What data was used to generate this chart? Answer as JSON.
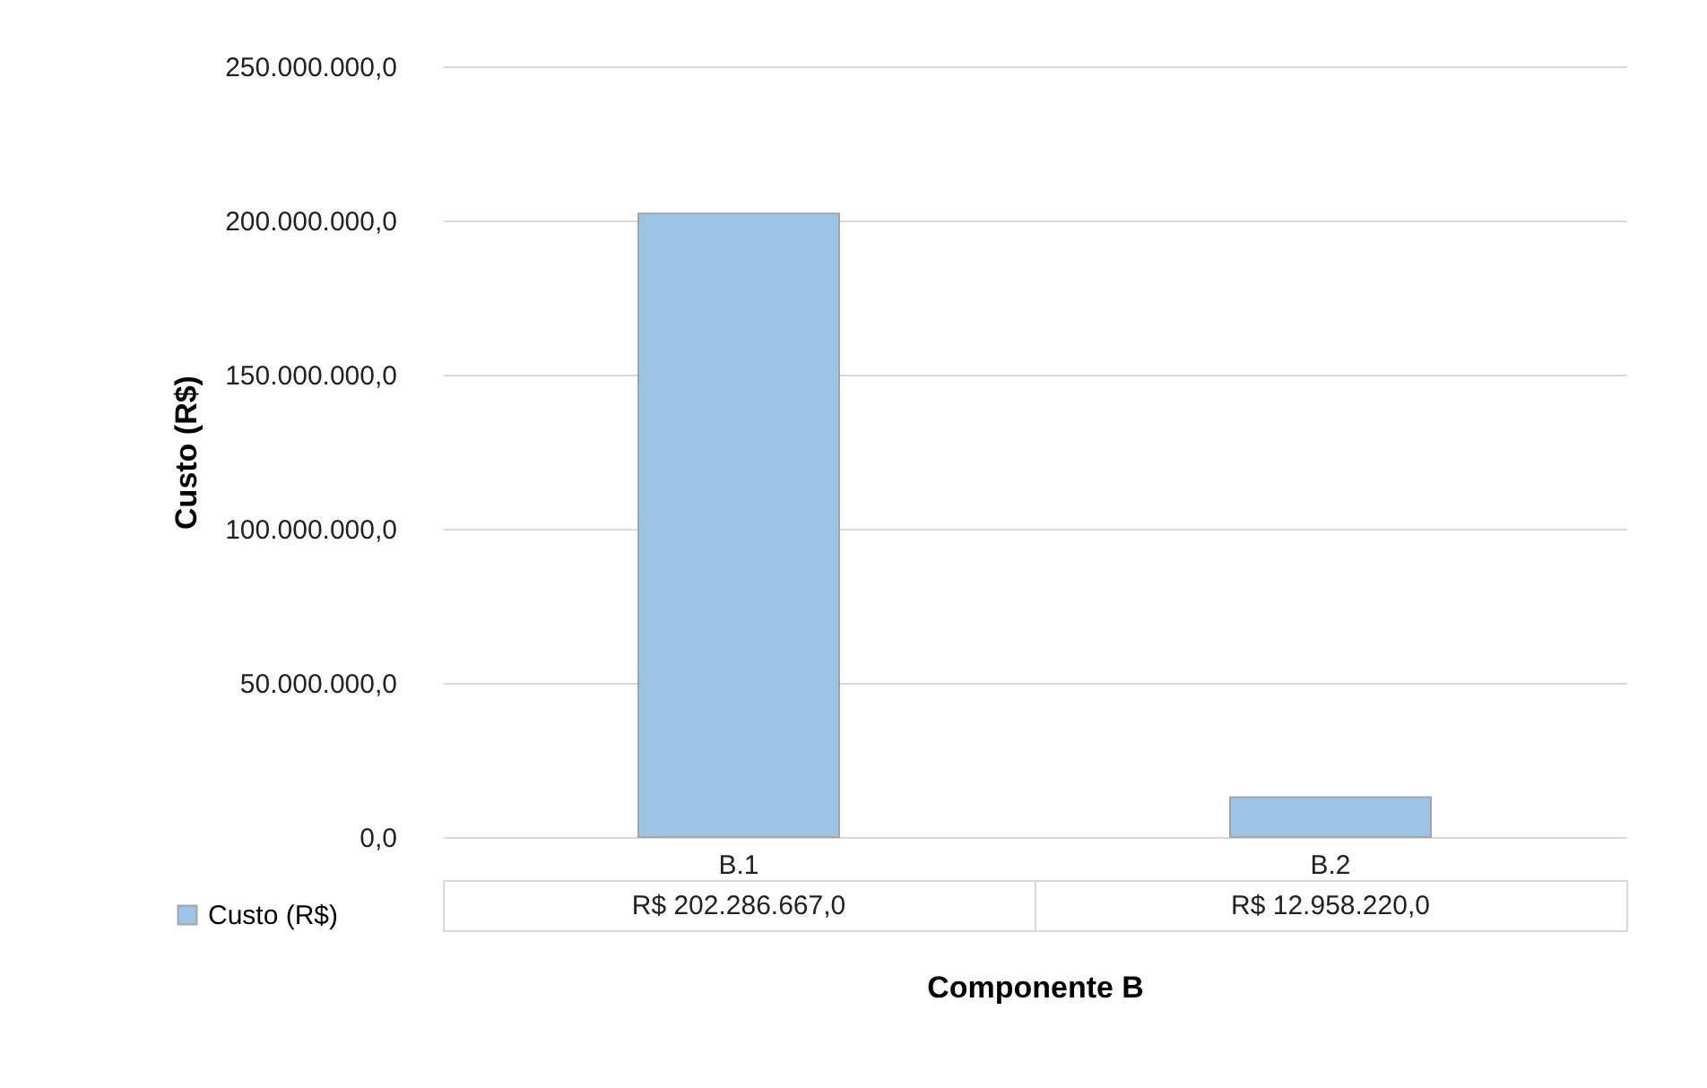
{
  "chart_data": {
    "type": "bar",
    "xlabel": "Componente B",
    "ylabel": "Custo (R$)",
    "categories": [
      "B.1",
      "B.2"
    ],
    "series": [
      {
        "name": "Custo (R$)",
        "color": "#9dc3e6",
        "values": [
          202286667.0,
          12958220.0
        ],
        "value_labels": [
          "R$ 202.286.667,0",
          "R$ 12.958.220,0"
        ]
      }
    ],
    "ylim": [
      0,
      250000000
    ],
    "yticks": [
      {
        "value": 0,
        "label": "0,0"
      },
      {
        "value": 50000000,
        "label": "50.000.000,0"
      },
      {
        "value": 100000000,
        "label": "100.000.000,0"
      },
      {
        "value": 150000000,
        "label": "150.000.000,0"
      },
      {
        "value": 200000000,
        "label": "200.000.000,0"
      },
      {
        "value": 250000000,
        "label": "250.000.000,0"
      }
    ],
    "grid": "y",
    "legend": "bottom left"
  }
}
